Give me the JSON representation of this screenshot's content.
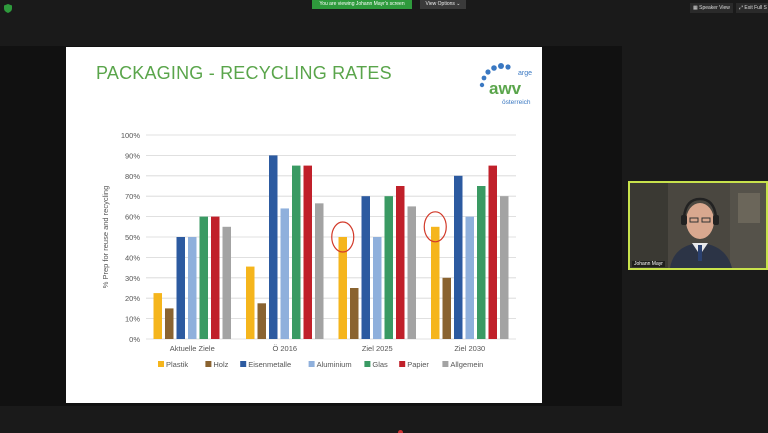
{
  "meeting": {
    "banner": "You are viewing Johann Mayr's screen",
    "view_options": "View Options ⌄",
    "speaker_view": "Speaker View",
    "exit_fullscreen": "Exit Full S",
    "participant_name": "Johann Mayr"
  },
  "slide": {
    "title": "PACKAGING - RECYCLING RATES",
    "logo": {
      "top": "arge",
      "main": "awv",
      "bottom": "österreich"
    }
  },
  "colors": {
    "title_green": "#5aa54b",
    "banner_green": "#2e9a3c",
    "camera_border": "#c8e24c",
    "highlight_circle": "#d23a2a"
  },
  "chart_data": {
    "type": "bar",
    "ylabel": "% Prep for reuse and recycling",
    "ylim": [
      0,
      100
    ],
    "yticks": [
      "0%",
      "10%",
      "20%",
      "30%",
      "40%",
      "50%",
      "60%",
      "70%",
      "80%",
      "90%",
      "100%"
    ],
    "categories": [
      "Aktuelle Ziele",
      "Ö 2016",
      "Ziel 2025",
      "Ziel 2030"
    ],
    "series": [
      {
        "name": "Plastik",
        "color": "#f5b51c",
        "values": [
          22.5,
          35.5,
          50,
          55
        ]
      },
      {
        "name": "Holz",
        "color": "#8a6330",
        "values": [
          15,
          17.5,
          25,
          30
        ]
      },
      {
        "name": "Eisenmetalle",
        "color": "#2c5aa0",
        "values": [
          50,
          90,
          70,
          80
        ]
      },
      {
        "name": "Aluminium",
        "color": "#8fb0dc",
        "values": [
          50,
          64,
          50,
          60
        ]
      },
      {
        "name": "Glas",
        "color": "#3a9a63",
        "values": [
          60,
          85,
          70,
          75
        ]
      },
      {
        "name": "Papier",
        "color": "#c0202a",
        "values": [
          60,
          85,
          75,
          85
        ]
      },
      {
        "name": "Allgemein",
        "color": "#a3a3a3",
        "values": [
          55,
          66.5,
          65,
          70
        ]
      }
    ],
    "grid": true,
    "legend": "bottom",
    "annotations": [
      "Plastik bar circled in Ziel 2025",
      "Plastik bar circled in Ziel 2030"
    ]
  }
}
